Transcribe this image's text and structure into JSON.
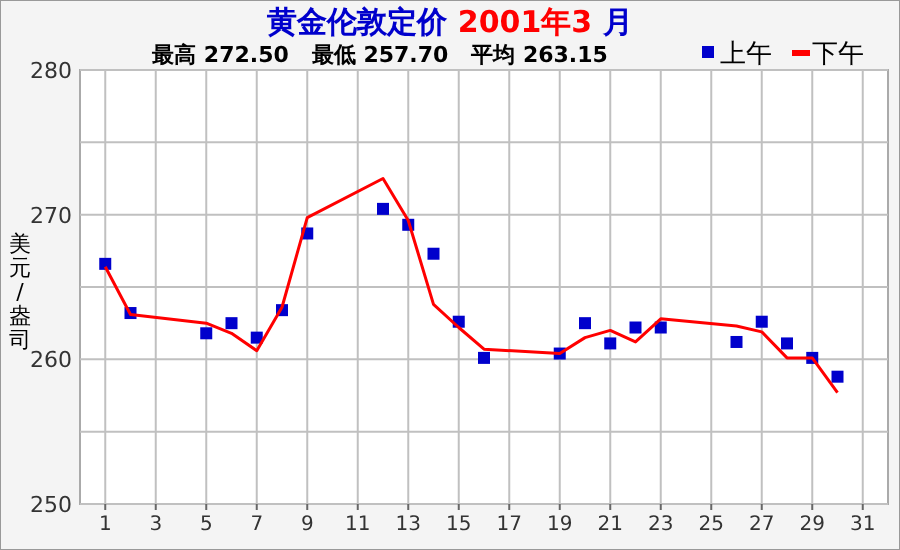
{
  "chart_data": {
    "type": "scatter",
    "title": "黄金伦敦定价 2001年3 月",
    "subtitle": "最高 272.50   最低 257.70   平均 263.15",
    "ylabel": "美元/盎司",
    "x": [
      1,
      2,
      5,
      6,
      7,
      8,
      9,
      12,
      13,
      14,
      15,
      16,
      19,
      20,
      21,
      22,
      23,
      26,
      27,
      28,
      29,
      30
    ],
    "series": [
      {
        "name": "上午",
        "color": "#0000cc",
        "marker": "square",
        "values": [
          266.6,
          263.2,
          261.8,
          262.5,
          261.5,
          263.4,
          268.7,
          270.4,
          269.3,
          267.3,
          262.6,
          260.1,
          260.4,
          262.5,
          261.1,
          262.2,
          262.2,
          261.2,
          262.6,
          261.1,
          260.1,
          258.8
        ]
      },
      {
        "name": "下午",
        "type": "line",
        "color": "#ff0000",
        "marker": "none",
        "values": [
          266.4,
          263.1,
          262.5,
          261.8,
          260.6,
          263.6,
          269.8,
          272.5,
          269.6,
          263.8,
          262.2,
          260.7,
          260.4,
          261.5,
          262.0,
          261.2,
          262.8,
          262.3,
          261.9,
          260.1,
          260.1,
          257.7
        ]
      }
    ],
    "xlim": [
      0,
      32
    ],
    "xticks": [
      1,
      3,
      5,
      7,
      9,
      11,
      13,
      15,
      17,
      19,
      21,
      23,
      25,
      27,
      29,
      31
    ],
    "ylim": [
      250,
      280
    ],
    "yticks": [
      250,
      {
        "value": 255,
        "label": null
      },
      260,
      {
        "value": 265,
        "label": null
      },
      270,
      {
        "value": 275,
        "label": null
      },
      280
    ],
    "grid": true,
    "legend": "top right"
  }
}
